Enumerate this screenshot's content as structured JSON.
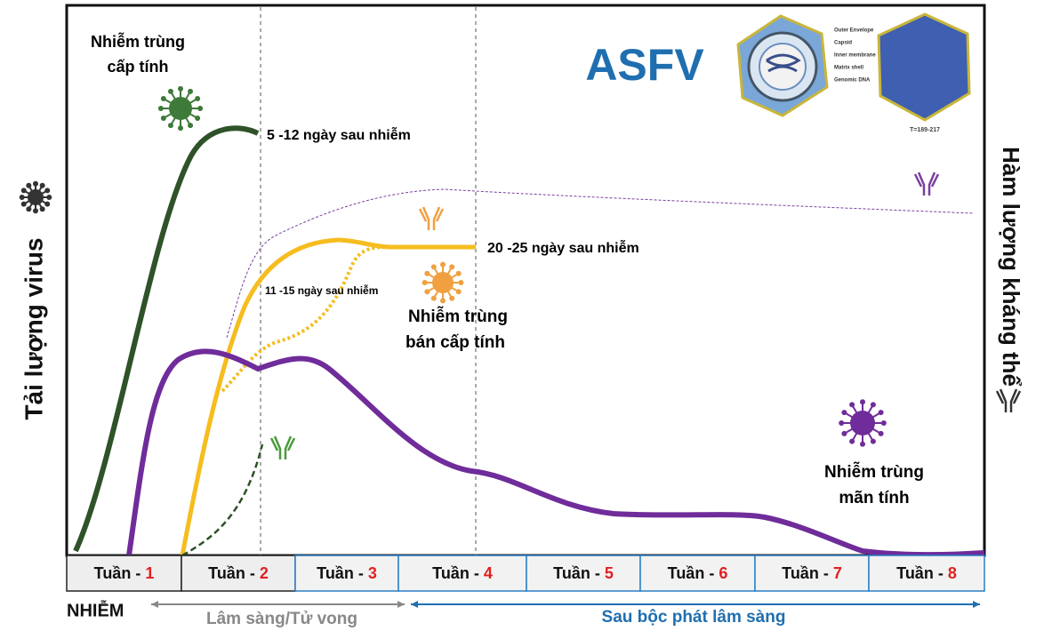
{
  "title": "ASFV",
  "y_label": "Tải lượng virus",
  "y2_label": "Hàm lượng kháng thể",
  "annotations": {
    "acute": [
      "Nhiễm trùng",
      "cấp tính"
    ],
    "acute_days": "5 -12 ngày sau nhiễm",
    "subacute_days": "20 -25 ngày sau nhiễm",
    "early_days": "11 -15 ngày sau nhiễm",
    "subacute": [
      "Nhiễm trùng",
      "bán cấp tính"
    ],
    "chronic": [
      "Nhiễm trùng",
      "mãn tính"
    ]
  },
  "virus_labels": [
    "Outer Envelope",
    "Capsid",
    "Inner membrane",
    "Matrix shell",
    "Genomic DNA"
  ],
  "virus_caption": "T=189-217",
  "weeks": [
    {
      "label": "Tuần -",
      "number": "1"
    },
    {
      "label": "Tuần -",
      "number": "2"
    },
    {
      "label": "Tuần -",
      "number": "3"
    },
    {
      "label": "Tuần -",
      "number": "4"
    },
    {
      "label": "Tuần -",
      "number": "5"
    },
    {
      "label": "Tuần -",
      "number": "6"
    },
    {
      "label": "Tuần -",
      "number": "7"
    },
    {
      "label": "Tuần -",
      "number": "8"
    }
  ],
  "infection": "NHIỄM",
  "phase_clinical": "Lâm sàng/Tử vong",
  "phase_post": "Sau bộc phát lâm sàng"
}
